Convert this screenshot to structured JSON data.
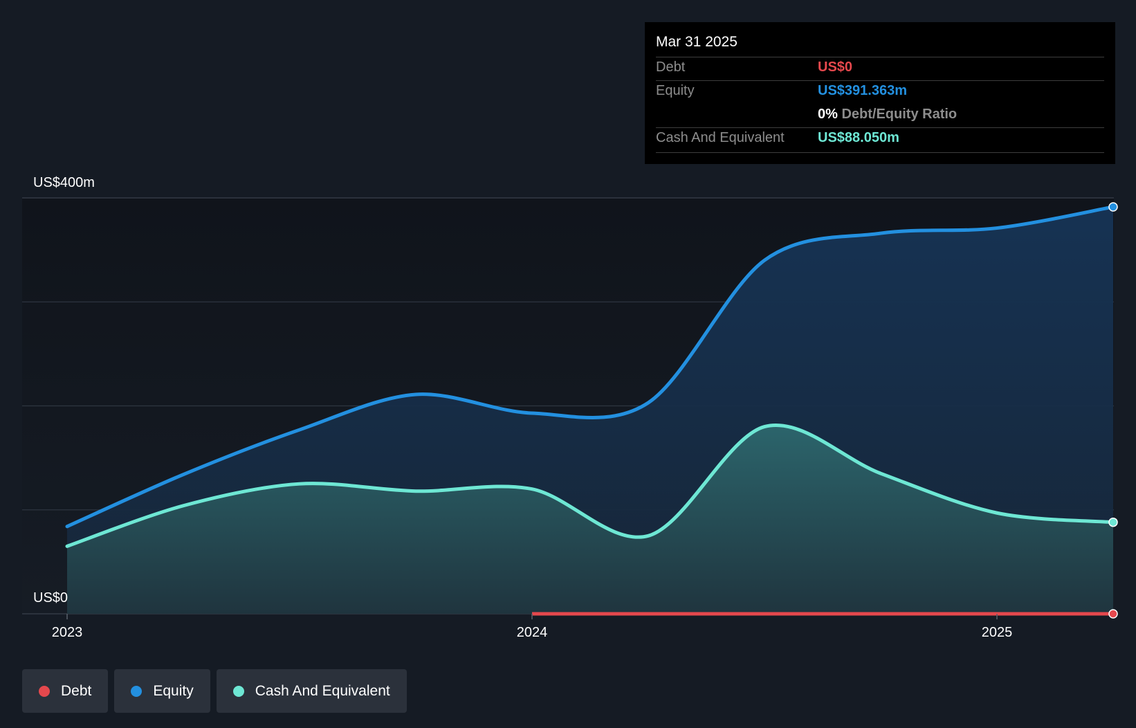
{
  "colors": {
    "background": "#151b24",
    "debt": "#e5484d",
    "equity": "#2390e0",
    "cash": "#6ee7d4",
    "grid": "#2e3540",
    "tooltip_label": "#8d8d8d"
  },
  "tooltip": {
    "date": "Mar 31 2025",
    "debt_label": "Debt",
    "debt_value": "US$0",
    "equity_label": "Equity",
    "equity_value": "US$391.363m",
    "ratio_value": "0%",
    "ratio_label": "Debt/Equity Ratio",
    "cash_label": "Cash And Equivalent",
    "cash_value": "US$88.050m"
  },
  "legend": [
    {
      "label": "Debt",
      "color": "#e5484d"
    },
    {
      "label": "Equity",
      "color": "#2390e0"
    },
    {
      "label": "Cash And Equivalent",
      "color": "#6ee7d4"
    }
  ],
  "chart_data": {
    "type": "area",
    "y_unit_labels": {
      "top": "US$400m",
      "bottom": "US$0"
    },
    "ylim": [
      0,
      400
    ],
    "xlim": [
      2023.0,
      2025.25
    ],
    "x_tick_labels": [
      {
        "x": 2023.0,
        "label": "2023"
      },
      {
        "x": 2024.0,
        "label": "2024"
      },
      {
        "x": 2025.0,
        "label": "2025"
      }
    ],
    "grid": true,
    "series": [
      {
        "name": "Equity",
        "x": [
          2023.0,
          2023.25,
          2023.5,
          2023.75,
          2024.0,
          2024.25,
          2024.5,
          2024.75,
          2025.0,
          2025.25
        ],
        "values": [
          84,
          134,
          177,
          211,
          193,
          203,
          340,
          366,
          371,
          391.363
        ]
      },
      {
        "name": "Cash And Equivalent",
        "x": [
          2023.0,
          2023.25,
          2023.5,
          2023.75,
          2024.0,
          2024.25,
          2024.5,
          2024.75,
          2025.0,
          2025.25
        ],
        "values": [
          65,
          104,
          125,
          118,
          120,
          75,
          180,
          135,
          97,
          88.05
        ]
      },
      {
        "name": "Debt",
        "x": [
          2024.0,
          2025.25
        ],
        "values": [
          0,
          0
        ]
      }
    ]
  }
}
